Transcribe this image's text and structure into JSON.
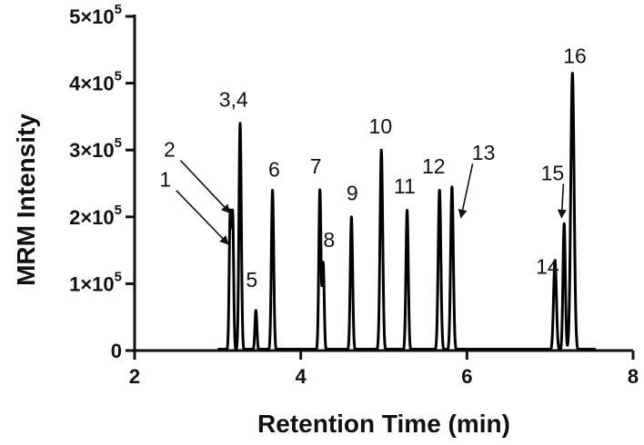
{
  "chart_data": {
    "type": "line",
    "title": "",
    "xlabel": "Retention Time (min)",
    "ylabel": "MRM Intensity",
    "xlim": [
      2,
      8
    ],
    "ylim": [
      0,
      500000
    ],
    "x_ticks": [
      {
        "value": 2,
        "label": "2"
      },
      {
        "value": 4,
        "label": "4"
      },
      {
        "value": 6,
        "label": "6"
      },
      {
        "value": 8,
        "label": "8"
      }
    ],
    "y_ticks": [
      {
        "value": 0,
        "label": "0"
      },
      {
        "value": 100000,
        "label": "1×10",
        "exp": "5"
      },
      {
        "value": 200000,
        "label": "2×10",
        "exp": "5"
      },
      {
        "value": 300000,
        "label": "3×10",
        "exp": "5"
      },
      {
        "value": 400000,
        "label": "4×10",
        "exp": "5"
      },
      {
        "value": 500000,
        "label": "5×10",
        "exp": "5"
      }
    ],
    "grid": false,
    "legend": "none",
    "line_color": "#000000",
    "peaks": [
      {
        "x": 3.15,
        "y": 200000,
        "w": 0.012
      },
      {
        "x": 3.18,
        "y": 200000,
        "w": 0.012
      },
      {
        "x": 3.27,
        "y": 340000,
        "w": 0.014
      },
      {
        "x": 3.46,
        "y": 60000,
        "w": 0.012
      },
      {
        "x": 3.66,
        "y": 240000,
        "w": 0.014
      },
      {
        "x": 4.23,
        "y": 240000,
        "w": 0.013
      },
      {
        "x": 4.27,
        "y": 130000,
        "w": 0.012
      },
      {
        "x": 4.61,
        "y": 200000,
        "w": 0.014
      },
      {
        "x": 4.97,
        "y": 300000,
        "w": 0.016
      },
      {
        "x": 5.28,
        "y": 210000,
        "w": 0.014
      },
      {
        "x": 5.67,
        "y": 240000,
        "w": 0.016
      },
      {
        "x": 5.82,
        "y": 245000,
        "w": 0.016
      },
      {
        "x": 7.06,
        "y": 135000,
        "w": 0.017
      },
      {
        "x": 7.17,
        "y": 190000,
        "w": 0.014
      },
      {
        "x": 7.27,
        "y": 415000,
        "w": 0.02
      }
    ],
    "annotations": [
      {
        "text": "1",
        "x": 2.37,
        "y": 245000,
        "arrow_to": [
          3.12,
          160000
        ]
      },
      {
        "text": "2",
        "x": 2.42,
        "y": 290000,
        "arrow_to": [
          3.14,
          207000
        ]
      },
      {
        "text": "3,4",
        "x": 3.19,
        "y": 365000
      },
      {
        "text": "5",
        "x": 3.41,
        "y": 95000
      },
      {
        "text": "6",
        "x": 3.68,
        "y": 260000
      },
      {
        "text": "7",
        "x": 4.18,
        "y": 265000
      },
      {
        "text": "8",
        "x": 4.34,
        "y": 155000
      },
      {
        "text": "9",
        "x": 4.62,
        "y": 225000
      },
      {
        "text": "10",
        "x": 4.96,
        "y": 325000
      },
      {
        "text": "11",
        "x": 5.25,
        "y": 235000
      },
      {
        "text": "12",
        "x": 5.6,
        "y": 265000
      },
      {
        "text": "13",
        "x": 6.2,
        "y": 285000,
        "arrow_to": [
          5.93,
          200000
        ]
      },
      {
        "text": "14",
        "x": 6.97,
        "y": 115000
      },
      {
        "text": "15",
        "x": 7.03,
        "y": 255000,
        "arrow_to": [
          7.14,
          200000
        ]
      },
      {
        "text": "16",
        "x": 7.3,
        "y": 430000
      }
    ]
  }
}
